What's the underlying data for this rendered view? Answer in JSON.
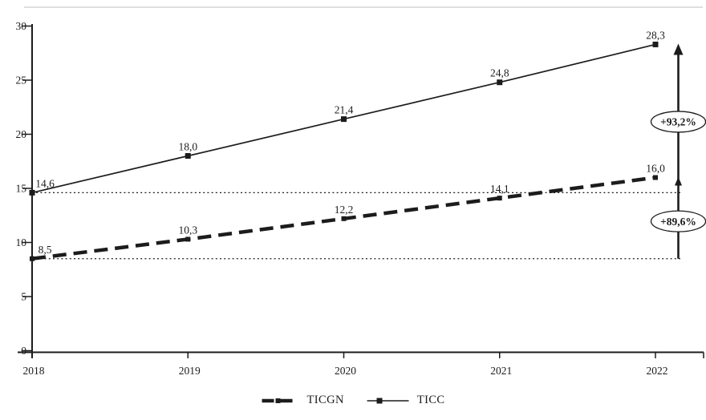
{
  "chart_data": {
    "type": "line",
    "title": "",
    "categories": [
      "2018",
      "2019",
      "2020",
      "2021",
      "2022"
    ],
    "series": [
      {
        "name": "TICGN",
        "style": "dashed",
        "marker": "square",
        "values": [
          8.5,
          10.3,
          12.2,
          14.1,
          16.0
        ],
        "point_labels": [
          "8,5",
          "10,3",
          "12,2",
          "14,1",
          "16,0"
        ]
      },
      {
        "name": "TICC",
        "style": "solid",
        "marker": "square",
        "values": [
          14.6,
          18.0,
          21.4,
          24.8,
          28.3
        ],
        "point_labels": [
          "14,6",
          "18,0",
          "21,4",
          "24,8",
          "28,3"
        ]
      }
    ],
    "xlabel": "",
    "ylabel": "",
    "y_axis": {
      "min": 0,
      "max": 30,
      "step": 5,
      "tick_labels": [
        "0",
        "5",
        "10",
        "15",
        "20",
        "25",
        "30"
      ]
    },
    "grid": "off",
    "legend_position": "bottom-center",
    "reference_lines": {
      "values": [
        14.6,
        8.5
      ],
      "style": "dotted"
    },
    "annotations": [
      {
        "label": "+93,2%",
        "series": "TICC",
        "from_value": 14.6,
        "to_value": 28.3
      },
      {
        "label": "+89,6%",
        "series": "TICGN",
        "from_value": 8.5,
        "to_value": 16.0
      }
    ]
  },
  "colors": {
    "ink": "#1c1c1c",
    "background": "#ffffff",
    "faint_rule": "#cccccc"
  }
}
